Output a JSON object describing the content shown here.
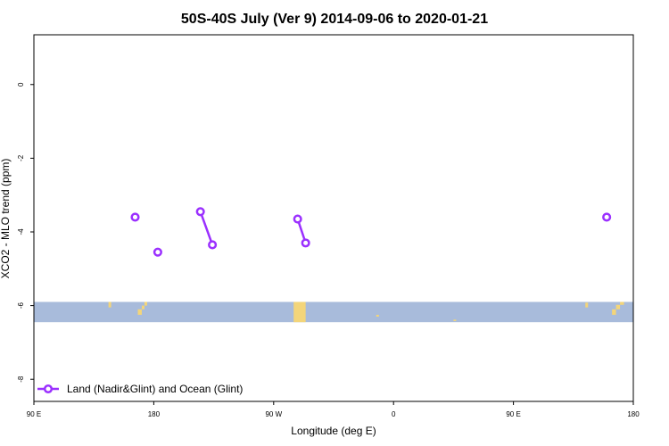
{
  "chart_data": {
    "type": "line",
    "title": "50S-40S July (Ver 9)   2014-09-06 to 2020-01-21",
    "xlabel": "Longitude (deg E)",
    "ylabel": "XCO2 - MLO trend (ppm)",
    "x_ticks": [
      {
        "value": 90,
        "label": "90 E"
      },
      {
        "value": 180,
        "label": "180"
      },
      {
        "value": 270,
        "label": "90 W"
      },
      {
        "value": 360,
        "label": "0"
      },
      {
        "value": 450,
        "label": "90 E"
      },
      {
        "value": 540,
        "label": "180"
      }
    ],
    "y_ticks": [
      {
        "value": 0,
        "label": "0"
      },
      {
        "value": -2,
        "label": "-2"
      },
      {
        "value": -4,
        "label": "-4"
      },
      {
        "value": -6,
        "label": "-6"
      },
      {
        "value": -8,
        "label": "-8"
      }
    ],
    "xlim": [
      90,
      540
    ],
    "ylim": [
      -8.6,
      1.35
    ],
    "grid": false,
    "legend_position": "bottom-left",
    "series": [
      {
        "name": "Land (Nadir&Glint) and Ocean (Glint)",
        "color": "#9b30ff",
        "segments": [
          [
            {
              "x": 166,
              "y": -3.6
            }
          ],
          [
            {
              "x": 183,
              "y": -4.55
            }
          ],
          [
            {
              "x": 215,
              "y": -3.45
            },
            {
              "x": 224,
              "y": -4.35
            }
          ],
          [
            {
              "x": 288,
              "y": -3.65
            },
            {
              "x": 294,
              "y": -4.3
            }
          ],
          [
            {
              "x": 520,
              "y": -3.6
            }
          ]
        ]
      }
    ],
    "map_strip": {
      "y_range": [
        -6.45,
        -5.9
      ],
      "ocean_color": "#a8bbdb",
      "land_color": "#f3d57a",
      "land_patches": [
        {
          "x0": 146,
          "x1": 148,
          "y0": -6.05,
          "y1": -5.9
        },
        {
          "x0": 168,
          "x1": 171,
          "y0": -6.25,
          "y1": -6.1
        },
        {
          "x0": 171,
          "x1": 173,
          "y0": -6.1,
          "y1": -6.0
        },
        {
          "x0": 173,
          "x1": 175,
          "y0": -6.0,
          "y1": -5.9
        },
        {
          "x0": 285,
          "x1": 294,
          "y0": -6.45,
          "y1": -5.9
        },
        {
          "x0": 347,
          "x1": 349,
          "y0": -6.3,
          "y1": -6.25
        },
        {
          "x0": 405,
          "x1": 407,
          "y0": -6.42,
          "y1": -6.38
        },
        {
          "x0": 504,
          "x1": 506,
          "y0": -6.05,
          "y1": -5.92
        },
        {
          "x0": 524,
          "x1": 527,
          "y0": -6.25,
          "y1": -6.1
        },
        {
          "x0": 527,
          "x1": 530,
          "y0": -6.1,
          "y1": -5.98
        },
        {
          "x0": 530,
          "x1": 533,
          "y0": -5.98,
          "y1": -5.9
        }
      ]
    }
  }
}
